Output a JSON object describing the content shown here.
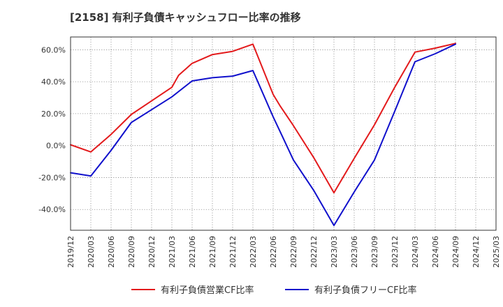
{
  "chart_data": {
    "type": "line",
    "title": "[2158]  有利子負債キャッシュフロー比率の推移",
    "xlabel": "",
    "ylabel": "",
    "categories": [
      "2019/12",
      "2020/03",
      "2020/06",
      "2020/09",
      "2020/12",
      "2021/03",
      "2021/06",
      "2021/09",
      "2021/12",
      "2022/03",
      "2022/06",
      "2022/09",
      "2022/12",
      "2023/03",
      "2023/06",
      "2023/09",
      "2023/12",
      "2024/03",
      "2024/06",
      "2024/09",
      "2024/12",
      "2025/03"
    ],
    "ylim": [
      -53,
      68
    ],
    "yticks": [
      -40,
      -20,
      0,
      20,
      40,
      60
    ],
    "ytick_labels": [
      "-40.0%",
      "-20.0%",
      "0.0%",
      "20.0%",
      "40.0%",
      "60.0%"
    ],
    "grid": true,
    "legend": "bottom",
    "series": [
      {
        "name": "有利子負債営業CF比率",
        "color": "#e31a1c",
        "points": [
          [
            "2019/12",
            0.5
          ],
          [
            "2020/03",
            -4.0
          ],
          [
            "2020/06",
            7.0
          ],
          [
            "2020/09",
            19.5
          ],
          [
            "2020/12",
            28.0
          ],
          [
            "2021/03",
            36.5
          ],
          [
            "2021/04",
            44.0
          ],
          [
            "2021/06",
            51.5
          ],
          [
            "2021/09",
            57.0
          ],
          [
            "2021/12",
            59.0
          ],
          [
            "2022/03",
            63.5
          ],
          [
            "2022/06",
            32.0
          ],
          [
            "2022/07",
            25.0
          ],
          [
            "2022/09",
            12.5
          ],
          [
            "2022/12",
            -7.5
          ],
          [
            "2023/03",
            -29.5
          ],
          [
            "2023/06",
            -8.0
          ],
          [
            "2023/09",
            13.0
          ],
          [
            "2023/12",
            36.5
          ],
          [
            "2024/03",
            58.5
          ],
          [
            "2024/06",
            61.0
          ],
          [
            "2024/09",
            64.0
          ]
        ]
      },
      {
        "name": "有利子負債フリーCF比率",
        "color": "#1010cc",
        "points": [
          [
            "2019/12",
            -17.0
          ],
          [
            "2020/03",
            -19.0
          ],
          [
            "2020/06",
            -3.0
          ],
          [
            "2020/09",
            14.5
          ],
          [
            "2020/12",
            22.5
          ],
          [
            "2021/03",
            30.5
          ],
          [
            "2021/06",
            40.5
          ],
          [
            "2021/09",
            42.5
          ],
          [
            "2021/12",
            43.5
          ],
          [
            "2022/03",
            47.0
          ],
          [
            "2022/06",
            18.0
          ],
          [
            "2022/07",
            9.0
          ],
          [
            "2022/09",
            -9.0
          ],
          [
            "2022/12",
            -28.0
          ],
          [
            "2023/03",
            -50.0
          ],
          [
            "2023/06",
            -29.0
          ],
          [
            "2023/09",
            -9.0
          ],
          [
            "2023/12",
            21.5
          ],
          [
            "2024/03",
            52.5
          ],
          [
            "2024/06",
            57.5
          ],
          [
            "2024/09",
            63.5
          ]
        ]
      }
    ]
  }
}
